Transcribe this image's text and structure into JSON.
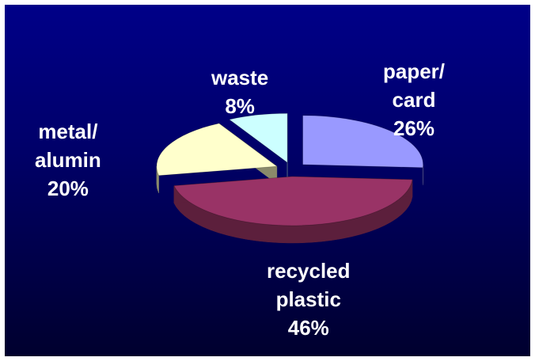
{
  "chart_data": {
    "type": "pie",
    "style": "3d-exploded",
    "background": "#000080",
    "slices": [
      {
        "label": [
          "paper/",
          "card"
        ],
        "value": 26,
        "value_label": "26%",
        "color": "#9999ff",
        "side": "#55557f"
      },
      {
        "label": [
          "recycled",
          "plastic"
        ],
        "value": 46,
        "value_label": "46%",
        "color": "#993366",
        "side": "#5c1f3c"
      },
      {
        "label": [
          "metal/",
          "alumin"
        ],
        "value": 20,
        "value_label": "20%",
        "color": "#ffffcc",
        "side": "#8a8a6a"
      },
      {
        "label": [
          "waste"
        ],
        "value": 8,
        "value_label": "8%",
        "color": "#ccffff",
        "side": "#6f8a8a"
      }
    ]
  }
}
